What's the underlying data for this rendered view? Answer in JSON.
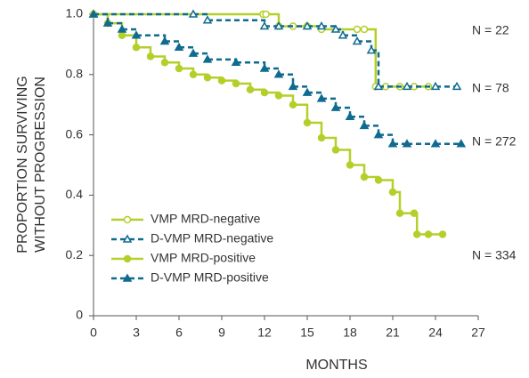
{
  "chart_data": {
    "type": "step",
    "x_label": "MONTHS",
    "y_label": [
      "PROPORTION SURVIVING",
      "WITHOUT PROGRESSION"
    ],
    "xlim": [
      0,
      27
    ],
    "xticks": [
      0,
      3,
      6,
      9,
      12,
      15,
      18,
      21,
      24,
      27
    ],
    "ylim": [
      0,
      1
    ],
    "yticks": [
      0,
      0.2,
      0.4,
      0.6,
      0.8,
      {
        "value": 1,
        "label": "1.0"
      }
    ],
    "legend": "lower-left",
    "series": [
      {
        "name": "VMP MRD-negative",
        "color": "#b5cf2a",
        "dashed": false,
        "marker": "circle",
        "filled": false,
        "x": [
          0,
          11.9,
          12.1,
          13,
          14,
          15,
          16,
          18.5,
          19,
          19.8,
          20.5,
          21.5,
          22.5,
          23.5
        ],
        "values": [
          1,
          1,
          1,
          0.96,
          0.96,
          0.96,
          0.95,
          0.95,
          0.95,
          0.76,
          0.76,
          0.76,
          0.76,
          0.76
        ]
      },
      {
        "name": "D-VMP MRD-negative",
        "color": "#0f6b8f",
        "dashed": true,
        "marker": "triangle",
        "filled": false,
        "x": [
          0,
          7,
          8,
          12,
          13,
          15,
          16,
          17,
          17.5,
          18.5,
          19.5,
          20,
          22,
          24,
          25.5
        ],
        "values": [
          1,
          1,
          0.98,
          0.96,
          0.96,
          0.96,
          0.96,
          0.95,
          0.93,
          0.91,
          0.88,
          0.76,
          0.76,
          0.76,
          0.76
        ]
      },
      {
        "name": "VMP MRD-positive",
        "color": "#b5cf2a",
        "dashed": false,
        "marker": "circle",
        "filled": true,
        "x": [
          0,
          1,
          2,
          3,
          4,
          5,
          6,
          7,
          8,
          9,
          10,
          11,
          12,
          13,
          14,
          15,
          16,
          17,
          18,
          19,
          20,
          21,
          21.5,
          22.5,
          22.7,
          23.5,
          24.5
        ],
        "values": [
          1,
          0.97,
          0.93,
          0.89,
          0.86,
          0.84,
          0.82,
          0.8,
          0.79,
          0.78,
          0.77,
          0.75,
          0.74,
          0.73,
          0.7,
          0.64,
          0.59,
          0.55,
          0.5,
          0.46,
          0.45,
          0.41,
          0.34,
          0.34,
          0.27,
          0.27,
          0.27
        ]
      },
      {
        "name": "D-VMP MRD-positive",
        "color": "#0f6b8f",
        "dashed": true,
        "marker": "triangle",
        "filled": true,
        "x": [
          0,
          1,
          2,
          3,
          5,
          6,
          7,
          8,
          10,
          12,
          13,
          14,
          15,
          16,
          17,
          18,
          19,
          20,
          21,
          22,
          24,
          25.8
        ],
        "values": [
          1,
          0.97,
          0.95,
          0.93,
          0.91,
          0.89,
          0.87,
          0.85,
          0.84,
          0.82,
          0.8,
          0.76,
          0.74,
          0.72,
          0.69,
          0.66,
          0.63,
          0.6,
          0.57,
          0.57,
          0.57,
          0.57
        ]
      }
    ],
    "annotations": [
      "N = 22",
      "N = 78",
      "N = 272",
      "N = 334"
    ]
  }
}
